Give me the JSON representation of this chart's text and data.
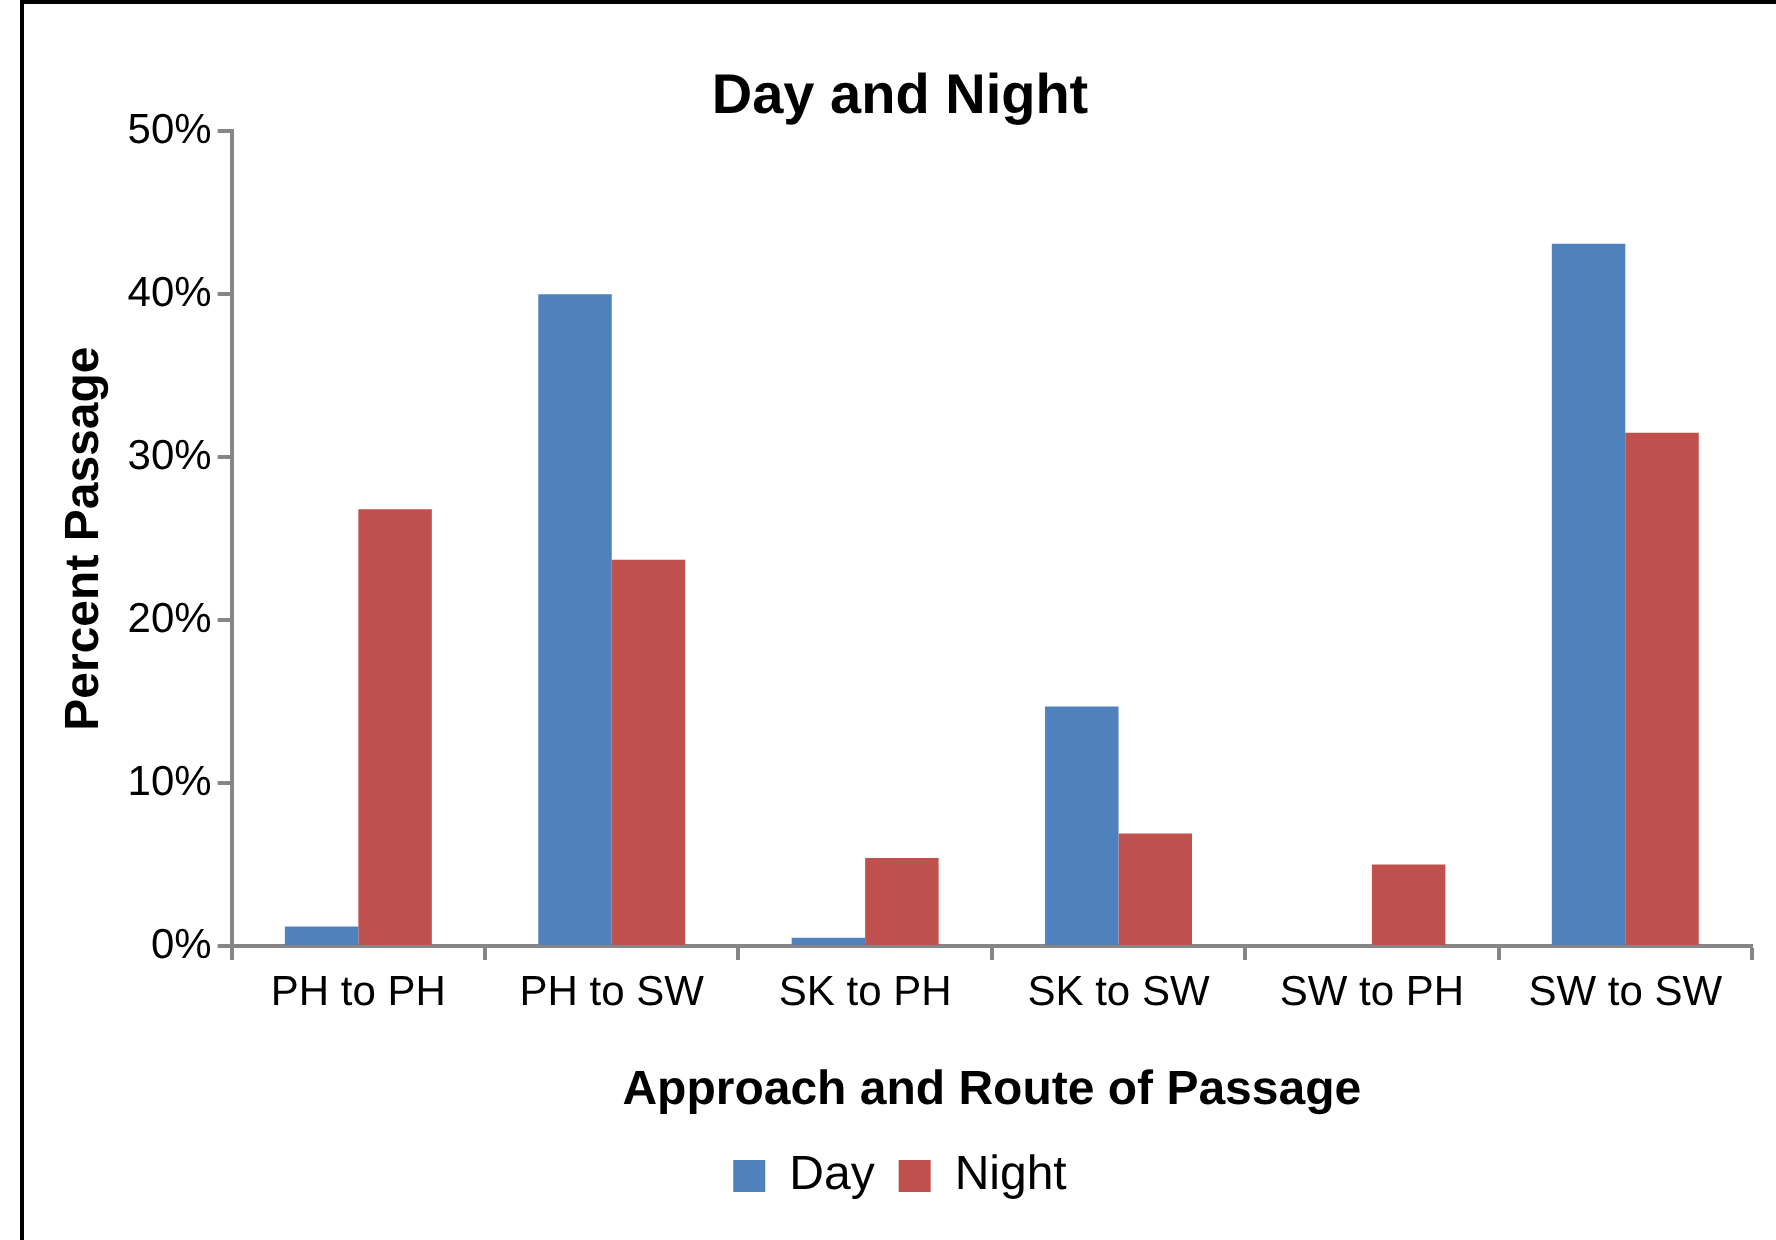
{
  "chart_data": {
    "type": "bar",
    "title": "Day and Night",
    "xlabel": "Approach and Route of Passage",
    "ylabel": "Percent Passage",
    "categories": [
      "PH to PH",
      "PH to SW",
      "SK to PH",
      "SK to SW",
      "SW to PH",
      "SW to SW"
    ],
    "series": [
      {
        "name": "Day",
        "color": "#4f81bd",
        "values": [
          1.2,
          40.0,
          0.5,
          14.7,
          0,
          43.1
        ]
      },
      {
        "name": "Night",
        "color": "#c0504d",
        "values": [
          26.8,
          23.7,
          5.4,
          6.9,
          5.0,
          31.5
        ]
      }
    ],
    "ylim": [
      0,
      50
    ],
    "yticks": [
      {
        "value": 0,
        "label": "0%"
      },
      {
        "value": 10,
        "label": "10%"
      },
      {
        "value": 20,
        "label": "20%"
      },
      {
        "value": 30,
        "label": "30%"
      },
      {
        "value": 40,
        "label": "40%"
      },
      {
        "value": 50,
        "label": "50%"
      }
    ],
    "grid": false,
    "legend": "bottom"
  }
}
